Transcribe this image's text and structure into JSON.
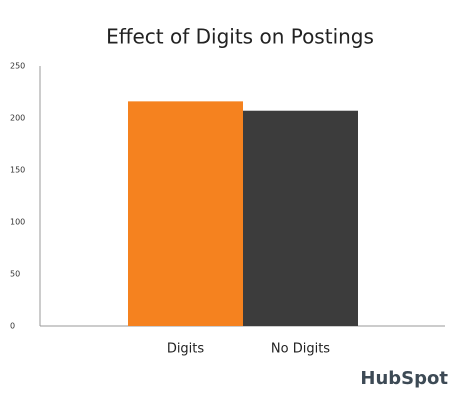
{
  "chart_data": {
    "type": "bar",
    "title": "Effect of Digits on Postings",
    "categories": [
      "Digits",
      "No Digits"
    ],
    "values": [
      216,
      207
    ],
    "colors": [
      "#f5821f",
      "#3c3c3c"
    ],
    "ylim": [
      0,
      250
    ],
    "yticks": [
      0,
      50,
      100,
      150,
      200,
      250
    ],
    "grid": false,
    "logo": "HubSpot"
  }
}
